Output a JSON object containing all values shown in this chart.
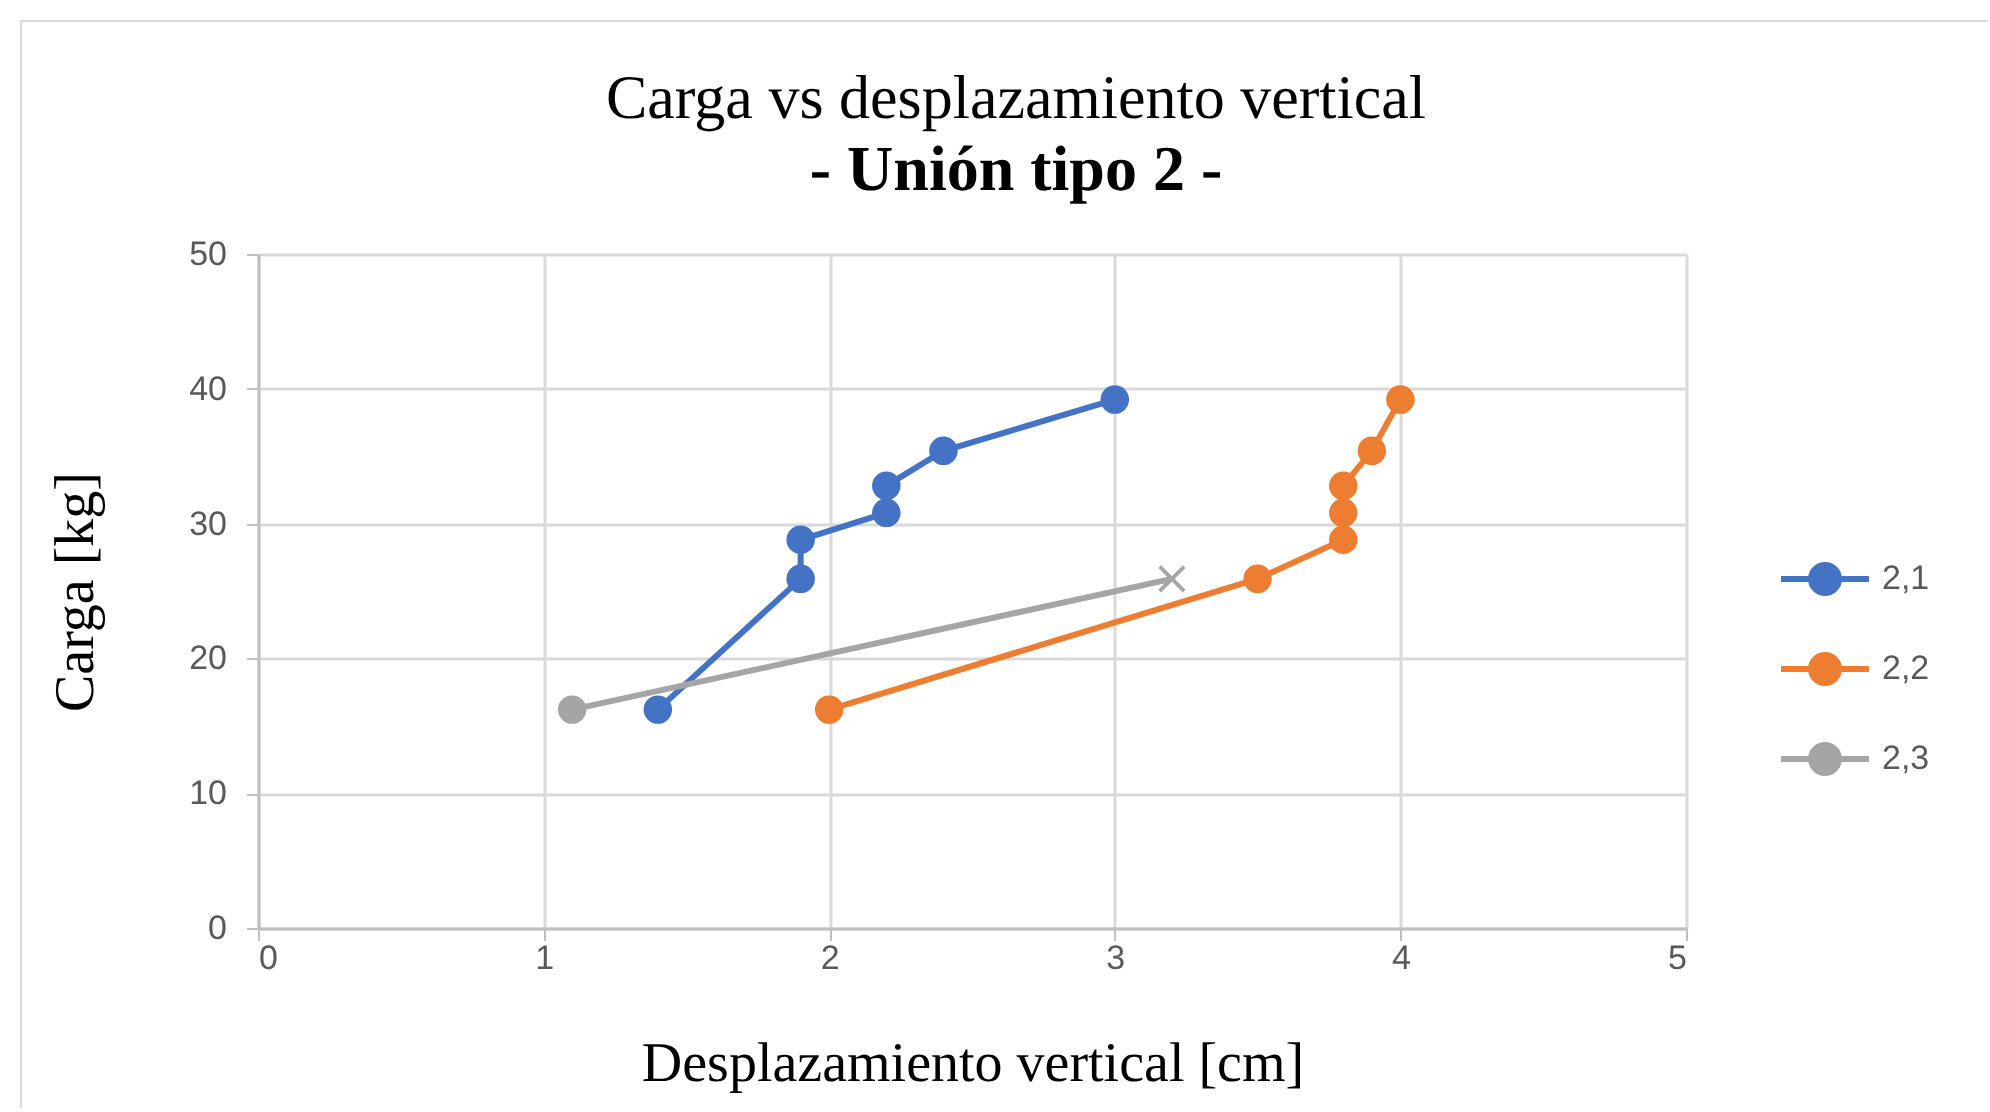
{
  "chart_data": {
    "type": "line",
    "title": "Carga vs desplazamiento vertical",
    "subtitle": "- Unión tipo 2 -",
    "xlabel": "Desplazamiento vertical [cm]",
    "ylabel": "Carga [kg]",
    "xlim": [
      0,
      5
    ],
    "xticks": [
      0,
      1,
      2,
      3,
      4,
      5
    ],
    "ylim": [
      0,
      50
    ],
    "yticks": [
      0,
      10,
      20,
      30,
      40,
      50
    ],
    "grid": true,
    "legend": "right",
    "marker": "circle",
    "line_style": "solid",
    "series": [
      {
        "name": "2,1",
        "color": "#4472c4",
        "x": [
          1.4,
          1.9,
          1.9,
          2.2,
          2.2,
          2.4,
          3.0
        ],
        "values": [
          16.2,
          25.9,
          28.8,
          30.8,
          32.8,
          35.4,
          39.2
        ]
      },
      {
        "name": "2,2",
        "color": "#ed7d31",
        "x": [
          2.0,
          3.5,
          3.8,
          3.8,
          3.8,
          3.9,
          4.0
        ],
        "values": [
          16.2,
          25.9,
          28.8,
          30.8,
          32.8,
          35.4,
          39.2
        ]
      },
      {
        "name": "2,3",
        "color": "#a5a5a5",
        "x": [
          1.1,
          3.2
        ],
        "values": [
          16.2,
          25.9
        ],
        "marker": [
          "circle",
          "cross"
        ]
      }
    ]
  }
}
